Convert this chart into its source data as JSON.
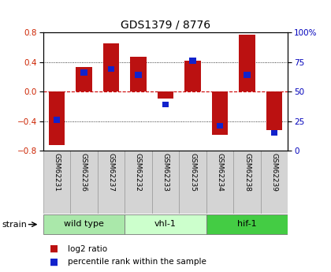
{
  "title": "GDS1379 / 8776",
  "samples": [
    "GSM62231",
    "GSM62236",
    "GSM62237",
    "GSM62232",
    "GSM62233",
    "GSM62235",
    "GSM62234",
    "GSM62238",
    "GSM62239"
  ],
  "log2_ratio": [
    -0.72,
    0.33,
    0.65,
    0.47,
    -0.09,
    0.42,
    -0.58,
    0.77,
    -0.52
  ],
  "percentile_rank": [
    25,
    65,
    68,
    63,
    38,
    75,
    20,
    63,
    14
  ],
  "groups": [
    {
      "label": "wild type",
      "start": 0,
      "end": 3,
      "color": "#aae8aa"
    },
    {
      "label": "vhl-1",
      "start": 3,
      "end": 6,
      "color": "#ccffcc"
    },
    {
      "label": "hif-1",
      "start": 6,
      "end": 9,
      "color": "#44cc44"
    }
  ],
  "ylim": [
    -0.8,
    0.8
  ],
  "y2lim": [
    0,
    100
  ],
  "yticks": [
    -0.8,
    -0.4,
    0.0,
    0.4,
    0.8
  ],
  "y2ticks": [
    0,
    25,
    50,
    75,
    100
  ],
  "y2labels": [
    "0",
    "25",
    "50",
    "75",
    "100%"
  ],
  "bar_color": "#bb1111",
  "pct_color": "#1122cc",
  "zero_line_color": "#cc0000",
  "bar_width": 0.6,
  "pct_bar_width": 0.25,
  "pct_bar_height": 0.04,
  "legend_items": [
    {
      "label": "log2 ratio",
      "color": "#bb1111"
    },
    {
      "label": "percentile rank within the sample",
      "color": "#1122cc"
    }
  ]
}
